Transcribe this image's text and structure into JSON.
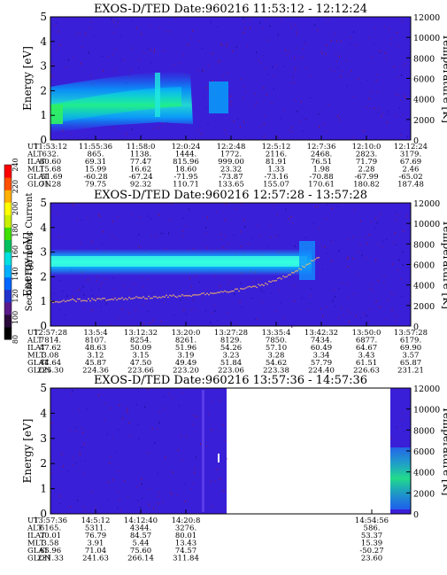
{
  "chart_data": [
    {
      "type": "heatmap",
      "title": "EXOS-D/TED  Date:960216  11:53:12 - 12:12:24",
      "ylabel": "Energy [eV]",
      "ylabel_right": "Temperature [K]",
      "ylim": [
        0,
        5
      ],
      "yticks": [
        "0",
        "1",
        "2",
        "3",
        "4",
        "5"
      ],
      "ylim_right": [
        0,
        12000
      ],
      "yticks_right": [
        "0",
        "2000",
        "4000",
        "6000",
        "8000",
        "10000",
        "12000"
      ],
      "x_ticks": [
        "11:53:12",
        "11:55:36",
        "11:58:0",
        "12:0:24",
        "12:2:48",
        "12:5:12",
        "12:7:36",
        "12:10:0",
        "12:12:24"
      ],
      "orbit_table": [
        {
          "label": "UT",
          "values": [
            "11:53:12",
            "11:55:36",
            "11:58:0",
            "12:0:24",
            "12:2:48",
            "12:5:12",
            "12:7:36",
            "12:10:0",
            "12:12:24"
          ]
        },
        {
          "label": "ALT",
          "values": [
            "632.",
            "865.",
            "1138.",
            "1444.",
            "1772.",
            "2116.",
            "2468.",
            "2823.",
            "3179."
          ]
        },
        {
          "label": "ILAT",
          "values": [
            "60.60",
            "69.31",
            "77.47",
            "815.96",
            "999.00",
            "81.91",
            "76.51",
            "71.79",
            "67.69"
          ]
        },
        {
          "label": "MLT",
          "values": [
            "15.68",
            "15.99",
            "16.62",
            "18.60",
            "23.32",
            "1.33",
            "1.98",
            "2.28",
            "2.46"
          ]
        },
        {
          "label": "GLAT",
          "values": [
            "-51.69",
            "-60.28",
            "-67.24",
            "-71.95",
            "-73.87",
            "-73.16",
            "-70.88",
            "-67.99",
            "-65.02"
          ]
        },
        {
          "label": "GLON",
          "values": [
            "71.28",
            "79.75",
            "92.32",
            "110.71",
            "133.65",
            "155.07",
            "170.61",
            "180.82",
            "187.48"
          ]
        }
      ]
    },
    {
      "type": "heatmap",
      "title": "EXOS-D/TED  Date:960216  12:57:28 - 13:57:28",
      "ylabel": "Energy [eV]",
      "ylabel_right": "Temperature [K]",
      "ylim": [
        0,
        5
      ],
      "yticks": [
        "0",
        "1",
        "2",
        "3",
        "4",
        "5"
      ],
      "ylim_right": [
        0,
        12000
      ],
      "yticks_right": [
        "0",
        "2000",
        "4000",
        "6000",
        "8000",
        "10000",
        "12000"
      ],
      "x_ticks": [
        "12:57:28",
        "13:5:4",
        "13:12:32",
        "13:20:0",
        "13:27:28",
        "13:35:4",
        "13:42:32",
        "13:50:0",
        "13:57:28"
      ],
      "orbit_table": [
        {
          "label": "UT",
          "values": [
            "12:57:28",
            "13:5:4",
            "13:12:32",
            "13:20:0",
            "13:27:28",
            "13:35:4",
            "13:42:32",
            "13:50:0",
            "13:57:28"
          ]
        },
        {
          "label": "ALT",
          "values": [
            "7814.",
            "8107.",
            "8254.",
            "8261.",
            "8129.",
            "7850.",
            "7434.",
            "6877.",
            "6179."
          ]
        },
        {
          "label": "ILAT",
          "values": [
            "47.62",
            "48.63",
            "50.09",
            "51.96",
            "54.26",
            "57.10",
            "60.49",
            "64.67",
            "69.90"
          ]
        },
        {
          "label": "MLT",
          "values": [
            "3.08",
            "3.12",
            "3.15",
            "3.19",
            "3.23",
            "3.28",
            "3.34",
            "3.43",
            "3.57"
          ]
        },
        {
          "label": "GLAT",
          "values": [
            "44.64",
            "45.87",
            "47.50",
            "49.49",
            "51.84",
            "54.62",
            "57.79",
            "61.51",
            "65.87"
          ]
        },
        {
          "label": "GLON",
          "values": [
            "225.30",
            "224.36",
            "223.66",
            "223.20",
            "223.06",
            "223.38",
            "224.40",
            "226.63",
            "231.21"
          ]
        }
      ]
    },
    {
      "type": "heatmap",
      "title": "EXOS-D/TED  Date:960216  13:57:36 - 14:57:36",
      "ylabel": "Energy [eV]",
      "ylabel_right": "Temperature [K]",
      "ylim": [
        0,
        5
      ],
      "yticks": [
        "0",
        "1",
        "2",
        "3",
        "4",
        "5"
      ],
      "ylim_right": [
        0,
        12000
      ],
      "yticks_right": [
        "0",
        "2000",
        "4000",
        "6000",
        "8000",
        "10000",
        "12000"
      ],
      "x_ticks": [
        "13:57:36",
        "14:5:12",
        "14:12:40",
        "14:20:8",
        "14:54:56"
      ],
      "orbit_table": [
        {
          "label": "UT",
          "values": [
            "13:57:36",
            "14:5:12",
            "14:12:40",
            "14:20:8",
            "14:54:56"
          ]
        },
        {
          "label": "ALT",
          "values": [
            "6165.",
            "5311.",
            "4344.",
            "3276.",
            "586."
          ]
        },
        {
          "label": "ILAT",
          "values": [
            "70.01",
            "76.79",
            "84.57",
            "80.01",
            "53.37"
          ]
        },
        {
          "label": "MLT",
          "values": [
            "3.58",
            "3.91",
            "5.44",
            "13.43",
            "15.39"
          ]
        },
        {
          "label": "GLAT",
          "values": [
            "65.96",
            "71.04",
            "75.60",
            "74.57",
            "-50.27"
          ]
        },
        {
          "label": "GLON",
          "values": [
            "231.33",
            "241.63",
            "266.14",
            "311.84",
            "23.60"
          ]
        }
      ]
    }
  ],
  "colorbar": {
    "label": "Second Harmonic Current",
    "ticks": [
      "80",
      "100",
      "120",
      "140",
      "160",
      "180",
      "200",
      "220",
      "240"
    ],
    "colors": [
      "#000000",
      "#2a0a3a",
      "#5a1a8a",
      "#2233cc",
      "#0066ff",
      "#00b0ff",
      "#00e0e0",
      "#00c060",
      "#40e000",
      "#c8f000",
      "#ffff00",
      "#ffb000",
      "#ff5000",
      "#ff0000"
    ]
  }
}
